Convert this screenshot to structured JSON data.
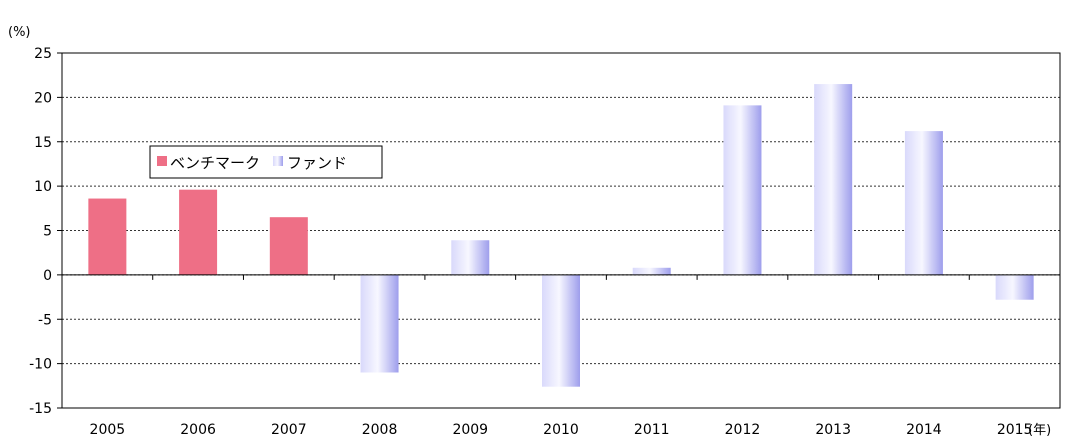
{
  "chart_data": {
    "type": "bar",
    "categories": [
      "2005",
      "2006",
      "2007",
      "2008",
      "2009",
      "2010",
      "2011",
      "2012",
      "2013",
      "2014",
      "2015"
    ],
    "series": [
      {
        "name": "ベンチマーク",
        "color": "#ee6f86",
        "values": [
          8.6,
          9.6,
          6.5,
          null,
          null,
          null,
          null,
          null,
          null,
          null,
          null
        ]
      },
      {
        "name": "ファンド",
        "color": "#b9b9f5",
        "values": [
          null,
          null,
          null,
          -11,
          3.9,
          -12.6,
          0.8,
          19.1,
          21.5,
          16.2,
          -2.8
        ]
      }
    ],
    "yticks": [
      "25",
      "20",
      "15",
      "10",
      "5",
      "0",
      "-5",
      "-10",
      "-15"
    ],
    "ylim": [
      -15,
      25
    ],
    "y_unit": "(%)",
    "x_unit": "(年)",
    "grid": true,
    "legend_position": "top-left"
  }
}
